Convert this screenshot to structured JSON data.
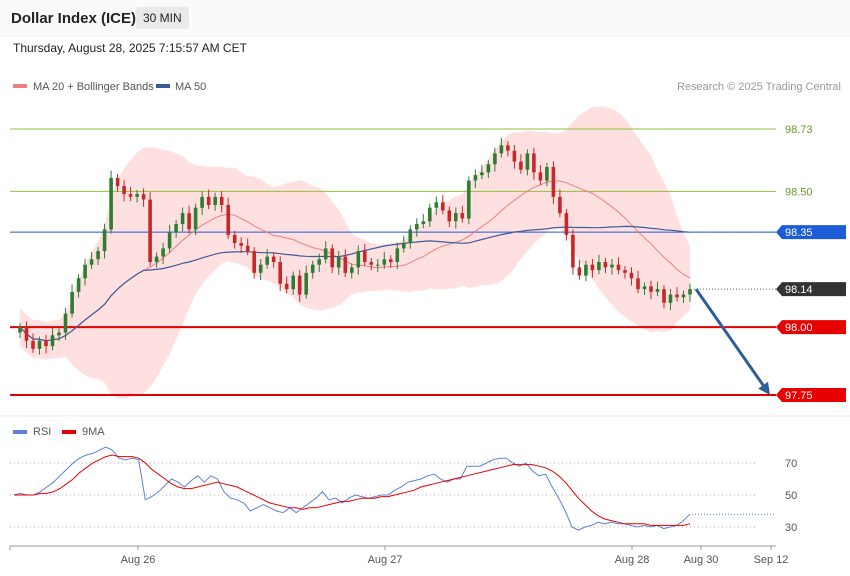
{
  "header": {
    "title": "Dollar Index (ICE)",
    "timeframe": "30 MIN",
    "datetime": "Thursday, August 28, 2025 7:15:57 AM CET"
  },
  "legend": {
    "ma20": "MA 20 + Bollinger Bands",
    "ma50": "MA 50",
    "copyright": "Research © 2025 Trading Central"
  },
  "rsi_legend": {
    "rsi": "RSI",
    "ma9": "9MA"
  },
  "colors": {
    "candle_up": "#2e7d32",
    "candle_down": "#c62828",
    "ma20": "#ef7e7e",
    "ma50": "#3e5a9a",
    "band_fill": "#ffd6d6",
    "support": "#e60000",
    "pivot": "#1e5bd8",
    "resistance": "#8fbf3f",
    "arrow": "#2f5d9a",
    "rsi": "#5b82d6",
    "rsi_ma": "#e60000"
  },
  "chart_data": [
    {
      "type": "candlestick",
      "title": "Dollar Index (ICE)",
      "timeframe": "30 MIN",
      "y_range": [
        97.6,
        98.82
      ],
      "x_tick_labels": [
        "Aug 26",
        "Aug 27",
        "Aug 28",
        "Aug 30",
        "Sep 12"
      ],
      "horizontal_levels": [
        {
          "value": 98.73,
          "label": "98.73",
          "kind": "resistance"
        },
        {
          "value": 98.5,
          "label": "98.50",
          "kind": "resistance"
        },
        {
          "value": 98.35,
          "label": "98.35",
          "kind": "pivot"
        },
        {
          "value": 98.14,
          "label": "98.14",
          "kind": "last"
        },
        {
          "value": 98.0,
          "label": "98.00",
          "kind": "support"
        },
        {
          "value": 97.75,
          "label": "97.75",
          "kind": "support"
        }
      ],
      "last_price": 98.14,
      "forecast_arrow": {
        "from": 98.14,
        "to": 97.75
      },
      "closes": [
        98.0,
        97.95,
        97.92,
        97.95,
        97.93,
        97.97,
        97.98,
        98.05,
        98.13,
        98.18,
        98.23,
        98.25,
        98.28,
        98.36,
        98.55,
        98.52,
        98.49,
        98.48,
        98.49,
        98.47,
        98.24,
        98.26,
        98.29,
        98.35,
        98.38,
        98.42,
        98.36,
        98.44,
        98.48,
        98.45,
        98.48,
        98.45,
        98.34,
        98.31,
        98.3,
        98.28,
        98.2,
        98.23,
        98.26,
        98.24,
        98.16,
        98.14,
        98.19,
        98.12,
        98.2,
        98.23,
        98.25,
        98.29,
        98.22,
        98.26,
        98.2,
        98.22,
        98.28,
        98.24,
        98.23,
        98.23,
        98.25,
        98.24,
        98.29,
        98.31,
        98.36,
        98.38,
        98.39,
        98.44,
        98.46,
        98.43,
        98.39,
        98.42,
        98.4,
        98.54,
        98.56,
        98.57,
        98.6,
        98.64,
        98.67,
        98.65,
        98.61,
        98.58,
        98.64,
        98.57,
        98.54,
        98.59,
        98.48,
        98.42,
        98.34,
        98.22,
        98.19,
        98.23,
        98.21,
        98.24,
        98.22,
        98.23,
        98.21,
        98.2,
        98.18,
        98.14,
        98.15,
        98.13,
        98.14,
        98.09,
        98.12,
        98.11,
        98.12,
        98.14
      ],
      "rsi": {
        "levels": [
          70,
          50,
          30
        ],
        "range": [
          18,
          88
        ],
        "rsi_values": [
          50,
          51,
          50,
          50,
          52,
          55,
          58,
          62,
          66,
          70,
          73,
          75,
          76,
          78,
          80,
          78,
          73,
          72,
          73,
          72,
          47,
          49,
          52,
          56,
          60,
          58,
          55,
          59,
          62,
          58,
          62,
          60,
          52,
          48,
          47,
          45,
          40,
          42,
          44,
          42,
          40,
          39,
          42,
          39,
          42,
          45,
          48,
          52,
          47,
          48,
          45,
          48,
          50,
          49,
          48,
          49,
          50,
          50,
          53,
          55,
          58,
          59,
          60,
          62,
          63,
          60,
          58,
          60,
          60,
          68,
          68,
          68,
          70,
          72,
          73,
          73,
          70,
          68,
          70,
          65,
          62,
          63,
          55,
          48,
          40,
          30,
          28,
          30,
          31,
          33,
          32,
          33,
          32,
          32,
          31,
          30,
          31,
          30,
          31,
          29,
          30,
          31,
          34,
          38
        ],
        "ma9_values": [
          50,
          50,
          50,
          50,
          51,
          51,
          52,
          54,
          57,
          60,
          64,
          67,
          70,
          72,
          74,
          75,
          74,
          74,
          74,
          73,
          70,
          66,
          63,
          60,
          57,
          55,
          54,
          54,
          55,
          56,
          57,
          58,
          57,
          56,
          55,
          53,
          51,
          49,
          47,
          45,
          44,
          43,
          42,
          42,
          41,
          42,
          42,
          43,
          44,
          45,
          46,
          46,
          47,
          48,
          48,
          48,
          49,
          49,
          50,
          51,
          52,
          53,
          55,
          56,
          57,
          58,
          59,
          60,
          61,
          62,
          63,
          64,
          65,
          66,
          67,
          68,
          69,
          69,
          69,
          69,
          68,
          67,
          65,
          62,
          58,
          53,
          48,
          44,
          40,
          37,
          35,
          34,
          33,
          32,
          32,
          32,
          32,
          31,
          31,
          31,
          31,
          31,
          31,
          32
        ]
      }
    }
  ]
}
